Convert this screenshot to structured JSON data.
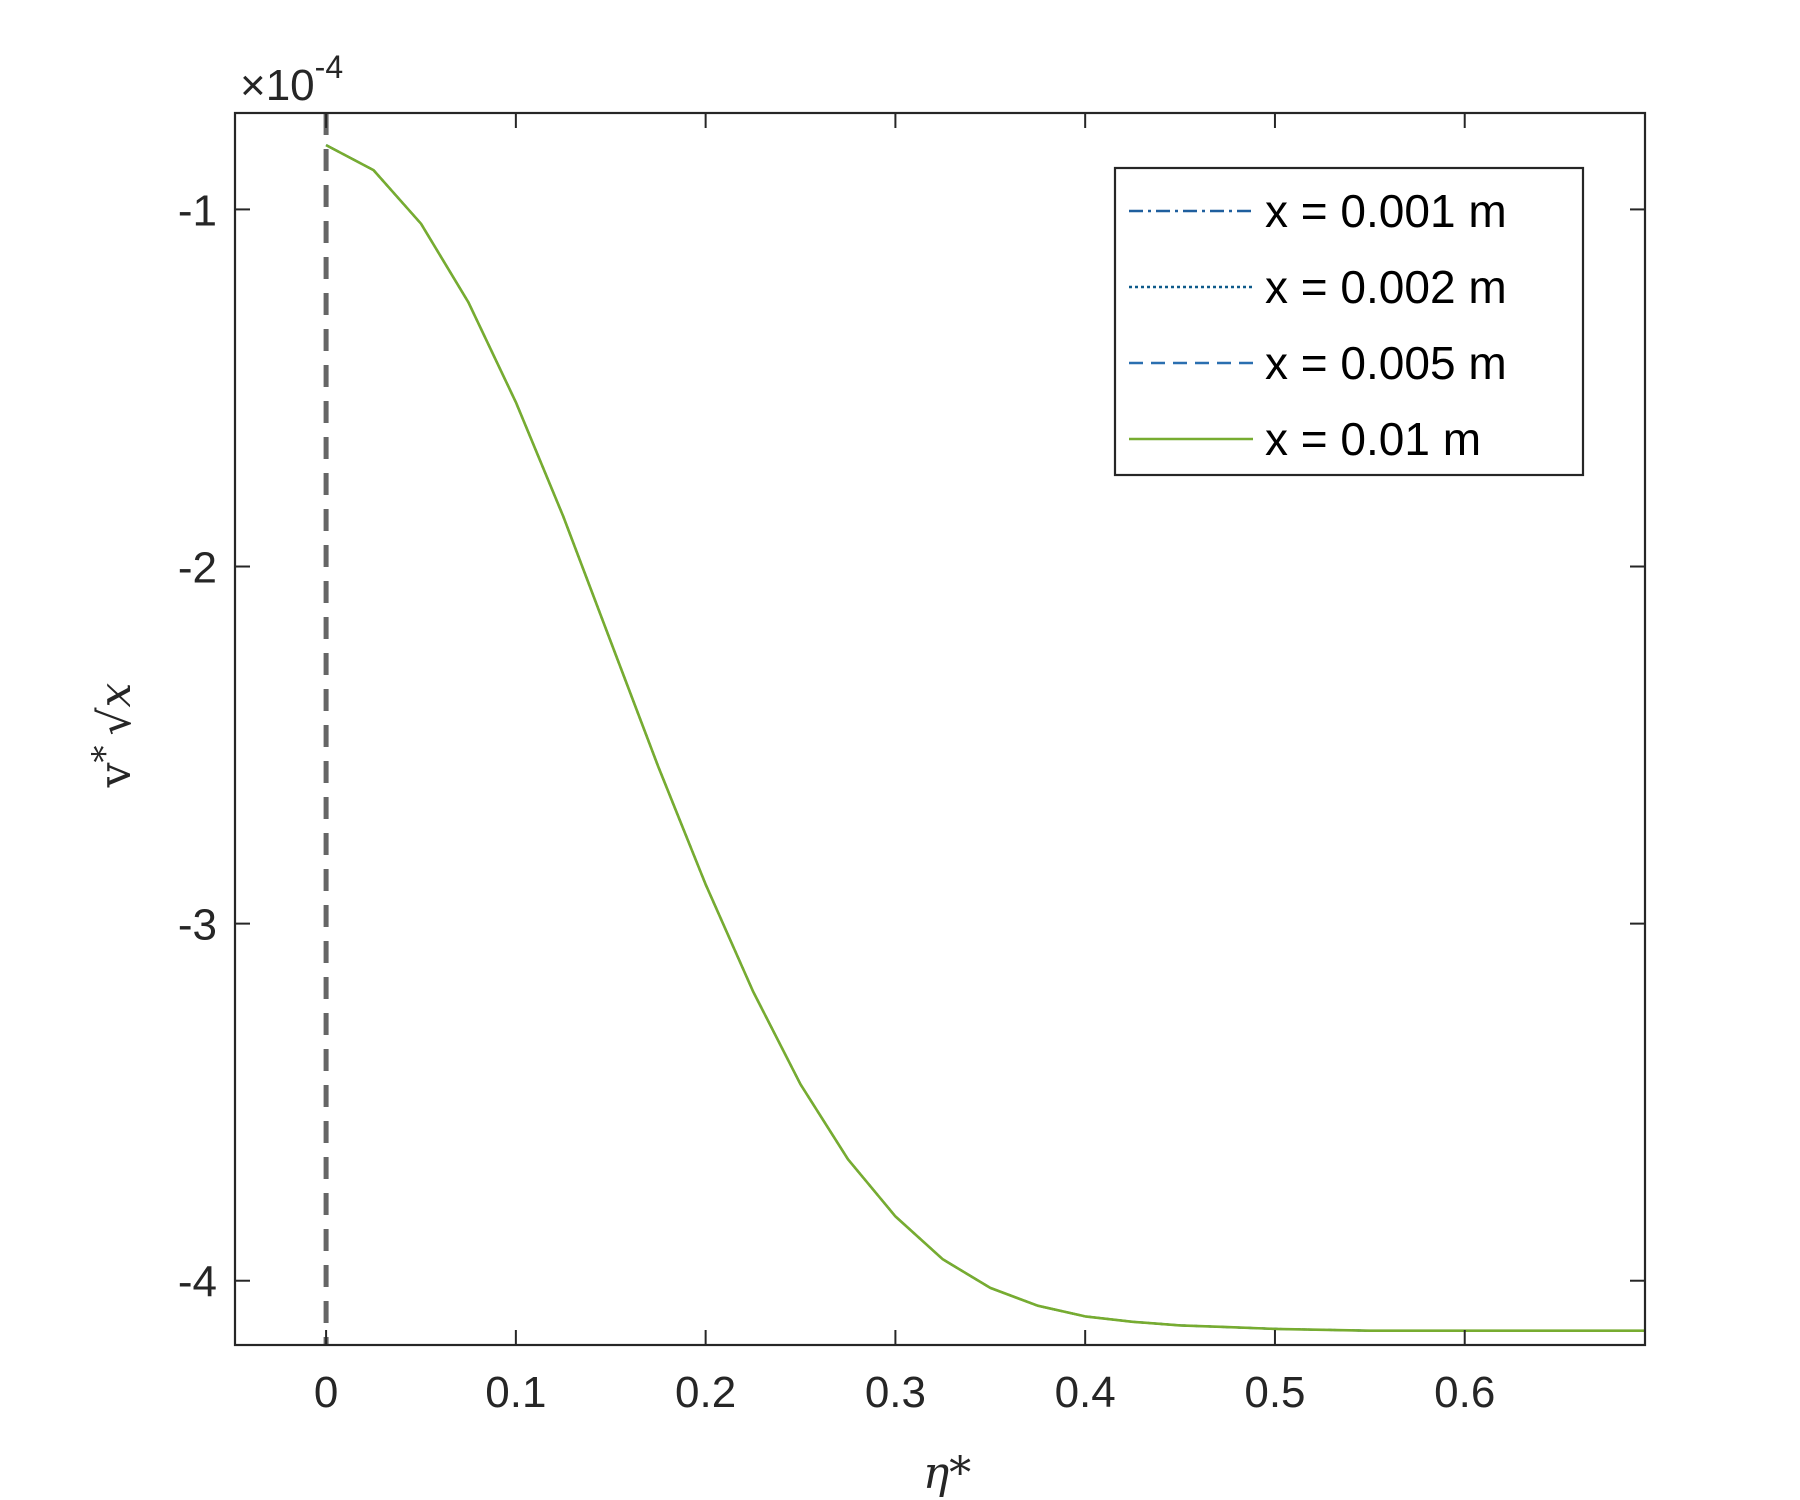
{
  "chart_data": {
    "type": "line",
    "title": "",
    "xlabel": "η*",
    "ylabel_parts": {
      "v": "v",
      "star": "*",
      "x": "x"
    },
    "y_multiplier": {
      "times": "×",
      "base": "10",
      "exponent": "-4"
    },
    "xlim": [
      -0.048,
      0.695
    ],
    "ylim": [
      -4.18,
      -0.73
    ],
    "x_ticks": [
      0,
      0.1,
      0.2,
      0.3,
      0.4,
      0.5,
      0.6
    ],
    "x_tick_labels": [
      "0",
      "0.1",
      "0.2",
      "0.3",
      "0.4",
      "0.5",
      "0.6"
    ],
    "y_ticks": [
      -1,
      -2,
      -3,
      -4
    ],
    "y_tick_labels": [
      "-1",
      "-2",
      "-3",
      "-4"
    ],
    "grid": false,
    "legend_position": "top-right",
    "reference_line": {
      "x": 0,
      "style": "dashed",
      "color": "#666666"
    },
    "x": [
      0,
      0.025,
      0.05,
      0.075,
      0.1,
      0.125,
      0.15,
      0.175,
      0.2,
      0.225,
      0.25,
      0.275,
      0.3,
      0.325,
      0.35,
      0.375,
      0.4,
      0.425,
      0.45,
      0.475,
      0.5,
      0.55,
      0.6,
      0.65,
      0.695
    ],
    "series": [
      {
        "name": "x = 0.001 m",
        "color": "#1f5f9e",
        "dash": "dashdot",
        "values": [
          -0.82,
          -0.89,
          -1.04,
          -1.26,
          -1.54,
          -1.86,
          -2.21,
          -2.56,
          -2.89,
          -3.19,
          -3.45,
          -3.66,
          -3.82,
          -3.94,
          -4.02,
          -4.07,
          -4.1,
          -4.115,
          -4.125,
          -4.13,
          -4.135,
          -4.14,
          -4.14,
          -4.14,
          -4.14
        ]
      },
      {
        "name": "x = 0.002 m",
        "color": "#0e5a8a",
        "dash": "dotted",
        "values": [
          -0.82,
          -0.89,
          -1.04,
          -1.26,
          -1.54,
          -1.86,
          -2.21,
          -2.56,
          -2.89,
          -3.19,
          -3.45,
          -3.66,
          -3.82,
          -3.94,
          -4.02,
          -4.07,
          -4.1,
          -4.115,
          -4.125,
          -4.13,
          -4.135,
          -4.14,
          -4.14,
          -4.14,
          -4.14
        ]
      },
      {
        "name": "x = 0.005 m",
        "color": "#2a6fb0",
        "dash": "dashed",
        "values": [
          -0.82,
          -0.89,
          -1.04,
          -1.26,
          -1.54,
          -1.86,
          -2.21,
          -2.56,
          -2.89,
          -3.19,
          -3.45,
          -3.66,
          -3.82,
          -3.94,
          -4.02,
          -4.07,
          -4.1,
          -4.115,
          -4.125,
          -4.13,
          -4.135,
          -4.14,
          -4.14,
          -4.14,
          -4.14
        ]
      },
      {
        "name": "x = 0.01 m",
        "color": "#77ac30",
        "dash": "solid",
        "values": [
          -0.82,
          -0.89,
          -1.04,
          -1.26,
          -1.54,
          -1.86,
          -2.21,
          -2.56,
          -2.89,
          -3.19,
          -3.45,
          -3.66,
          -3.82,
          -3.94,
          -4.02,
          -4.07,
          -4.1,
          -4.115,
          -4.125,
          -4.13,
          -4.135,
          -4.14,
          -4.14,
          -4.14,
          -4.14
        ]
      }
    ]
  }
}
